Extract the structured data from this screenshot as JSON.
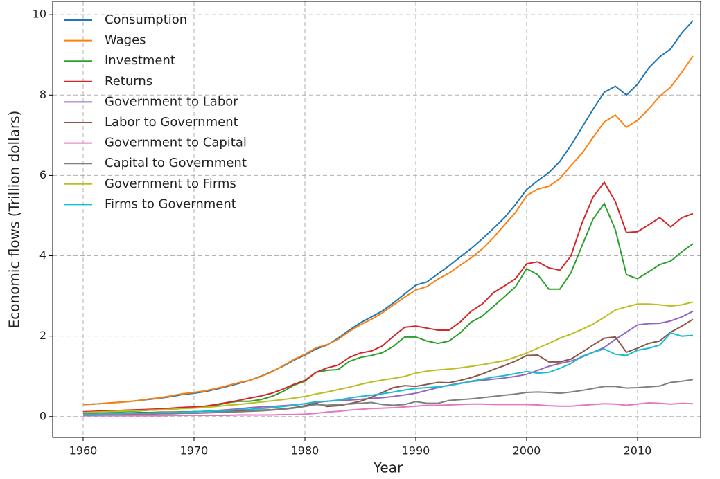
{
  "chart_data": {
    "type": "line",
    "xlabel": "Year",
    "ylabel": "Economic flows (Trillion dollars)",
    "x": [
      1960,
      1961,
      1962,
      1963,
      1964,
      1965,
      1966,
      1967,
      1968,
      1969,
      1970,
      1971,
      1972,
      1973,
      1974,
      1975,
      1976,
      1977,
      1978,
      1979,
      1980,
      1981,
      1982,
      1983,
      1984,
      1985,
      1986,
      1987,
      1988,
      1989,
      1990,
      1991,
      1992,
      1993,
      1994,
      1995,
      1996,
      1997,
      1998,
      1999,
      2000,
      2001,
      2002,
      2003,
      2004,
      2005,
      2006,
      2007,
      2008,
      2009,
      2010,
      2011,
      2012,
      2013,
      2014,
      2015
    ],
    "series": [
      {
        "name": "Consumption",
        "color": "#1f77b4",
        "values": [
          0.3,
          0.31,
          0.33,
          0.35,
          0.37,
          0.4,
          0.43,
          0.46,
          0.5,
          0.55,
          0.58,
          0.62,
          0.68,
          0.75,
          0.82,
          0.9,
          1.0,
          1.12,
          1.25,
          1.4,
          1.53,
          1.68,
          1.78,
          1.95,
          2.15,
          2.33,
          2.48,
          2.63,
          2.83,
          3.05,
          3.27,
          3.35,
          3.55,
          3.75,
          3.97,
          4.18,
          4.42,
          4.68,
          4.95,
          5.28,
          5.65,
          5.87,
          6.07,
          6.35,
          6.75,
          7.2,
          7.65,
          8.07,
          8.22,
          8.0,
          8.27,
          8.67,
          8.95,
          9.15,
          9.55,
          9.85
        ]
      },
      {
        "name": "Wages",
        "color": "#ff7f0e",
        "values": [
          0.3,
          0.31,
          0.33,
          0.35,
          0.37,
          0.4,
          0.44,
          0.47,
          0.52,
          0.57,
          0.6,
          0.64,
          0.7,
          0.77,
          0.84,
          0.9,
          0.99,
          1.11,
          1.26,
          1.42,
          1.55,
          1.71,
          1.79,
          1.92,
          2.12,
          2.28,
          2.42,
          2.58,
          2.78,
          2.97,
          3.15,
          3.23,
          3.42,
          3.57,
          3.76,
          3.95,
          4.17,
          4.45,
          4.77,
          5.08,
          5.5,
          5.66,
          5.73,
          5.92,
          6.25,
          6.55,
          6.95,
          7.33,
          7.5,
          7.2,
          7.37,
          7.65,
          7.97,
          8.2,
          8.57,
          8.97
        ]
      },
      {
        "name": "Investment",
        "color": "#2ca02c",
        "values": [
          0.1,
          0.1,
          0.11,
          0.12,
          0.13,
          0.14,
          0.16,
          0.17,
          0.19,
          0.21,
          0.22,
          0.24,
          0.28,
          0.34,
          0.38,
          0.38,
          0.42,
          0.5,
          0.62,
          0.78,
          0.88,
          1.1,
          1.15,
          1.17,
          1.37,
          1.47,
          1.52,
          1.59,
          1.75,
          1.98,
          1.98,
          1.88,
          1.82,
          1.88,
          2.08,
          2.35,
          2.5,
          2.74,
          2.98,
          3.23,
          3.68,
          3.53,
          3.17,
          3.17,
          3.58,
          4.25,
          4.92,
          5.3,
          4.65,
          3.53,
          3.43,
          3.6,
          3.78,
          3.87,
          4.1,
          4.3
        ]
      },
      {
        "name": "Returns",
        "color": "#d62728",
        "values": [
          0.12,
          0.13,
          0.14,
          0.15,
          0.16,
          0.17,
          0.18,
          0.19,
          0.21,
          0.23,
          0.24,
          0.26,
          0.3,
          0.35,
          0.4,
          0.46,
          0.51,
          0.58,
          0.68,
          0.8,
          0.9,
          1.1,
          1.21,
          1.28,
          1.47,
          1.58,
          1.63,
          1.76,
          2.0,
          2.22,
          2.25,
          2.2,
          2.15,
          2.15,
          2.35,
          2.62,
          2.8,
          3.08,
          3.25,
          3.43,
          3.8,
          3.85,
          3.7,
          3.64,
          4.0,
          4.82,
          5.47,
          5.83,
          5.35,
          4.58,
          4.6,
          4.77,
          4.95,
          4.72,
          4.95,
          5.05
        ]
      },
      {
        "name": "Government to Labor",
        "color": "#9467bd",
        "values": [
          0.05,
          0.06,
          0.06,
          0.06,
          0.07,
          0.07,
          0.08,
          0.09,
          0.1,
          0.11,
          0.12,
          0.13,
          0.15,
          0.17,
          0.19,
          0.22,
          0.24,
          0.25,
          0.27,
          0.29,
          0.32,
          0.35,
          0.38,
          0.4,
          0.41,
          0.43,
          0.45,
          0.47,
          0.5,
          0.54,
          0.58,
          0.65,
          0.72,
          0.78,
          0.83,
          0.87,
          0.9,
          0.93,
          0.96,
          1.0,
          1.05,
          1.15,
          1.25,
          1.32,
          1.38,
          1.48,
          1.6,
          1.72,
          1.92,
          2.1,
          2.28,
          2.31,
          2.32,
          2.38,
          2.48,
          2.62
        ]
      },
      {
        "name": "Labor to Government",
        "color": "#8c564b",
        "values": [
          0.08,
          0.08,
          0.09,
          0.09,
          0.09,
          0.1,
          0.1,
          0.11,
          0.11,
          0.12,
          0.12,
          0.13,
          0.13,
          0.14,
          0.15,
          0.15,
          0.16,
          0.17,
          0.19,
          0.22,
          0.27,
          0.33,
          0.25,
          0.27,
          0.32,
          0.38,
          0.48,
          0.6,
          0.72,
          0.77,
          0.75,
          0.8,
          0.85,
          0.84,
          0.9,
          0.97,
          1.06,
          1.17,
          1.27,
          1.38,
          1.52,
          1.53,
          1.36,
          1.36,
          1.43,
          1.6,
          1.78,
          1.95,
          1.98,
          1.6,
          1.7,
          1.82,
          1.88,
          2.1,
          2.25,
          2.42
        ]
      },
      {
        "name": "Government to Capital",
        "color": "#e377c2",
        "values": [
          0.02,
          0.02,
          0.02,
          0.02,
          0.02,
          0.02,
          0.02,
          0.02,
          0.03,
          0.03,
          0.03,
          0.03,
          0.03,
          0.03,
          0.04,
          0.04,
          0.04,
          0.04,
          0.05,
          0.05,
          0.06,
          0.08,
          0.11,
          0.13,
          0.16,
          0.18,
          0.2,
          0.21,
          0.22,
          0.24,
          0.26,
          0.28,
          0.28,
          0.29,
          0.3,
          0.31,
          0.31,
          0.3,
          0.3,
          0.3,
          0.3,
          0.29,
          0.27,
          0.26,
          0.26,
          0.28,
          0.3,
          0.32,
          0.31,
          0.28,
          0.31,
          0.34,
          0.33,
          0.31,
          0.33,
          0.32
        ]
      },
      {
        "name": "Capital to Government",
        "color": "#7f7f7f",
        "values": [
          0.04,
          0.04,
          0.05,
          0.05,
          0.05,
          0.06,
          0.06,
          0.07,
          0.07,
          0.08,
          0.08,
          0.09,
          0.1,
          0.11,
          0.12,
          0.13,
          0.14,
          0.16,
          0.18,
          0.21,
          0.25,
          0.3,
          0.28,
          0.3,
          0.31,
          0.33,
          0.35,
          0.3,
          0.28,
          0.3,
          0.37,
          0.33,
          0.33,
          0.4,
          0.42,
          0.44,
          0.47,
          0.5,
          0.53,
          0.56,
          0.6,
          0.61,
          0.6,
          0.58,
          0.61,
          0.65,
          0.7,
          0.75,
          0.75,
          0.71,
          0.72,
          0.74,
          0.76,
          0.85,
          0.88,
          0.92
        ]
      },
      {
        "name": "Government to Firms",
        "color": "#bcbd22",
        "values": [
          0.1,
          0.11,
          0.12,
          0.13,
          0.14,
          0.15,
          0.16,
          0.17,
          0.18,
          0.2,
          0.21,
          0.23,
          0.25,
          0.28,
          0.3,
          0.33,
          0.36,
          0.39,
          0.42,
          0.46,
          0.5,
          0.56,
          0.61,
          0.67,
          0.73,
          0.8,
          0.86,
          0.91,
          0.95,
          1.0,
          1.08,
          1.13,
          1.16,
          1.18,
          1.21,
          1.25,
          1.29,
          1.34,
          1.39,
          1.48,
          1.58,
          1.7,
          1.82,
          1.95,
          2.05,
          2.17,
          2.3,
          2.47,
          2.65,
          2.73,
          2.8,
          2.8,
          2.78,
          2.75,
          2.78,
          2.85
        ]
      },
      {
        "name": "Firms to Government",
        "color": "#17becf",
        "values": [
          0.06,
          0.06,
          0.07,
          0.07,
          0.08,
          0.08,
          0.09,
          0.1,
          0.1,
          0.11,
          0.12,
          0.13,
          0.14,
          0.15,
          0.17,
          0.18,
          0.2,
          0.22,
          0.25,
          0.28,
          0.32,
          0.37,
          0.38,
          0.41,
          0.46,
          0.5,
          0.53,
          0.57,
          0.61,
          0.66,
          0.7,
          0.72,
          0.74,
          0.77,
          0.82,
          0.88,
          0.93,
          0.98,
          1.02,
          1.07,
          1.12,
          1.08,
          1.1,
          1.2,
          1.32,
          1.5,
          1.6,
          1.68,
          1.55,
          1.52,
          1.65,
          1.7,
          1.78,
          2.08,
          2.0,
          2.02
        ]
      }
    ],
    "xlim": [
      1957.25,
      2015.69
    ],
    "xticks": [
      1960,
      1970,
      1980,
      1990,
      2000,
      2010
    ],
    "ylim": [
      -0.52,
      10.33
    ],
    "yticks": [
      0,
      2,
      4,
      6,
      8,
      10
    ],
    "grid": true,
    "legend": "upper left"
  }
}
